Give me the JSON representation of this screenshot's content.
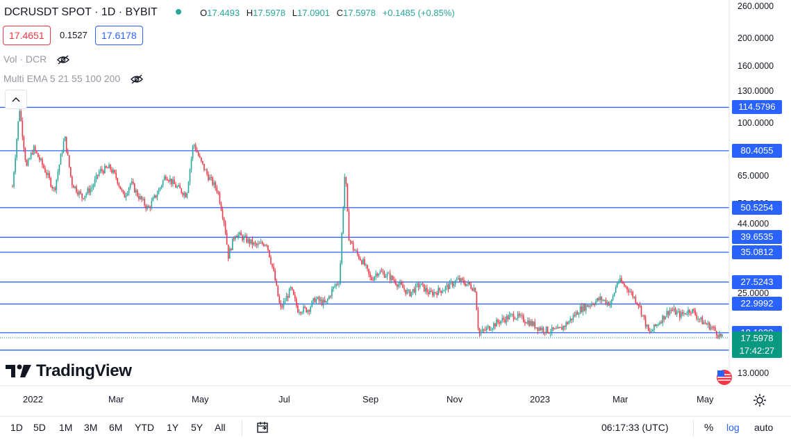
{
  "header": {
    "title": "DCRUSDT SPOT · 1D · BYBIT",
    "ohlc": {
      "o_label": "O",
      "o": "17.4493",
      "h_label": "H",
      "h": "17.5978",
      "l_label": "L",
      "l": "17.0901",
      "c_label": "C",
      "c": "17.5978",
      "change": "+0.1485 (+0.85%)"
    },
    "bid": "17.4651",
    "spread": "0.1527",
    "ask": "17.6178"
  },
  "indicators": [
    {
      "label": "Vol · DCR",
      "icon": "eye-off-icon"
    },
    {
      "label": "Multi EMA 5 21 55 100 200",
      "icon": "eye-off-icon"
    }
  ],
  "logo": {
    "text": "TradingView"
  },
  "colors": {
    "up": "#26a69a",
    "down": "#f23645",
    "hline": "#2962ff",
    "current": "#089981"
  },
  "chart_data": {
    "type": "line",
    "symbol": "DCRUSDT",
    "interval": "1D",
    "scale": "log",
    "ylim": [
      13.0,
      260.0
    ],
    "y_ticks": [
      "260.0000",
      "200.0000",
      "160.0000",
      "130.0000",
      "100.0000",
      "65.0000",
      "52.0000",
      "44.0000",
      "35.0000",
      "25.0000",
      "13.0000"
    ],
    "x_ticks": [
      "2022",
      "Mar",
      "May",
      "Jul",
      "Sep",
      "Nov",
      "2023",
      "Mar",
      "May"
    ],
    "horizontal_levels": [
      {
        "value": 114.5796,
        "label": "114.5796"
      },
      {
        "value": 80.4055,
        "label": "80.4055"
      },
      {
        "value": 50.5254,
        "label": "50.5254"
      },
      {
        "value": 39.6535,
        "label": "39.6535"
      },
      {
        "value": 35.0812,
        "label": "35.0812"
      },
      {
        "value": 27.5243,
        "label": "27.5243"
      },
      {
        "value": 22.9992,
        "label": "22.9992"
      },
      {
        "value": 18.1939,
        "label": "18.1939"
      },
      {
        "value": 15.7842,
        "label": "15.7842"
      }
    ],
    "current_price": "17.5978",
    "countdown": "17:42:27",
    "series": [
      {
        "values": [
          [
            0.0,
            60
          ],
          [
            0.01,
            114
          ],
          [
            0.02,
            70
          ],
          [
            0.03,
            82
          ],
          [
            0.04,
            74
          ],
          [
            0.05,
            66
          ],
          [
            0.06,
            58
          ],
          [
            0.075,
            90
          ],
          [
            0.085,
            62
          ],
          [
            0.1,
            55
          ],
          [
            0.115,
            60
          ],
          [
            0.125,
            68
          ],
          [
            0.14,
            70
          ],
          [
            0.15,
            64
          ],
          [
            0.16,
            55
          ],
          [
            0.17,
            62
          ],
          [
            0.18,
            56
          ],
          [
            0.195,
            50
          ],
          [
            0.21,
            58
          ],
          [
            0.22,
            66
          ],
          [
            0.235,
            60
          ],
          [
            0.25,
            56
          ],
          [
            0.26,
            86
          ],
          [
            0.27,
            74
          ],
          [
            0.28,
            66
          ],
          [
            0.295,
            58
          ],
          [
            0.305,
            44
          ],
          [
            0.31,
            34
          ],
          [
            0.32,
            41
          ],
          [
            0.335,
            39
          ],
          [
            0.35,
            37
          ],
          [
            0.365,
            38
          ],
          [
            0.375,
            30
          ],
          [
            0.385,
            22
          ],
          [
            0.4,
            26
          ],
          [
            0.41,
            22
          ],
          [
            0.425,
            22
          ],
          [
            0.435,
            24
          ],
          [
            0.45,
            23
          ],
          [
            0.46,
            26
          ],
          [
            0.47,
            28
          ],
          [
            0.478,
            70
          ],
          [
            0.483,
            40
          ],
          [
            0.49,
            36
          ],
          [
            0.505,
            32
          ],
          [
            0.515,
            28
          ],
          [
            0.525,
            30
          ],
          [
            0.54,
            29
          ],
          [
            0.555,
            27
          ],
          [
            0.57,
            25
          ],
          [
            0.585,
            27
          ],
          [
            0.6,
            25
          ],
          [
            0.62,
            26
          ],
          [
            0.64,
            28
          ],
          [
            0.655,
            27
          ],
          [
            0.665,
            26
          ],
          [
            0.67,
            18
          ],
          [
            0.685,
            19
          ],
          [
            0.7,
            20
          ],
          [
            0.72,
            21
          ],
          [
            0.74,
            20
          ],
          [
            0.755,
            19
          ],
          [
            0.77,
            18.5
          ],
          [
            0.785,
            18.5
          ],
          [
            0.8,
            20
          ],
          [
            0.815,
            22
          ],
          [
            0.83,
            23
          ],
          [
            0.845,
            24
          ],
          [
            0.86,
            23
          ],
          [
            0.87,
            28
          ],
          [
            0.885,
            26
          ],
          [
            0.9,
            23
          ],
          [
            0.915,
            18
          ],
          [
            0.93,
            20
          ],
          [
            0.945,
            22
          ],
          [
            0.96,
            21
          ],
          [
            0.975,
            22
          ],
          [
            0.99,
            20
          ],
          [
            1.005,
            19
          ],
          [
            1.02,
            17.4
          ]
        ]
      }
    ]
  },
  "time_axis": {
    "settings_icon": "gear-icon"
  },
  "bottom_bar": {
    "ranges": [
      "1D",
      "5D",
      "1M",
      "3M",
      "6M",
      "YTD",
      "1Y",
      "5Y",
      "All"
    ],
    "goto_icon": "calendar-icon",
    "clock": "06:17:33 (UTC)",
    "percent": "%",
    "log": "log",
    "auto": "auto"
  }
}
